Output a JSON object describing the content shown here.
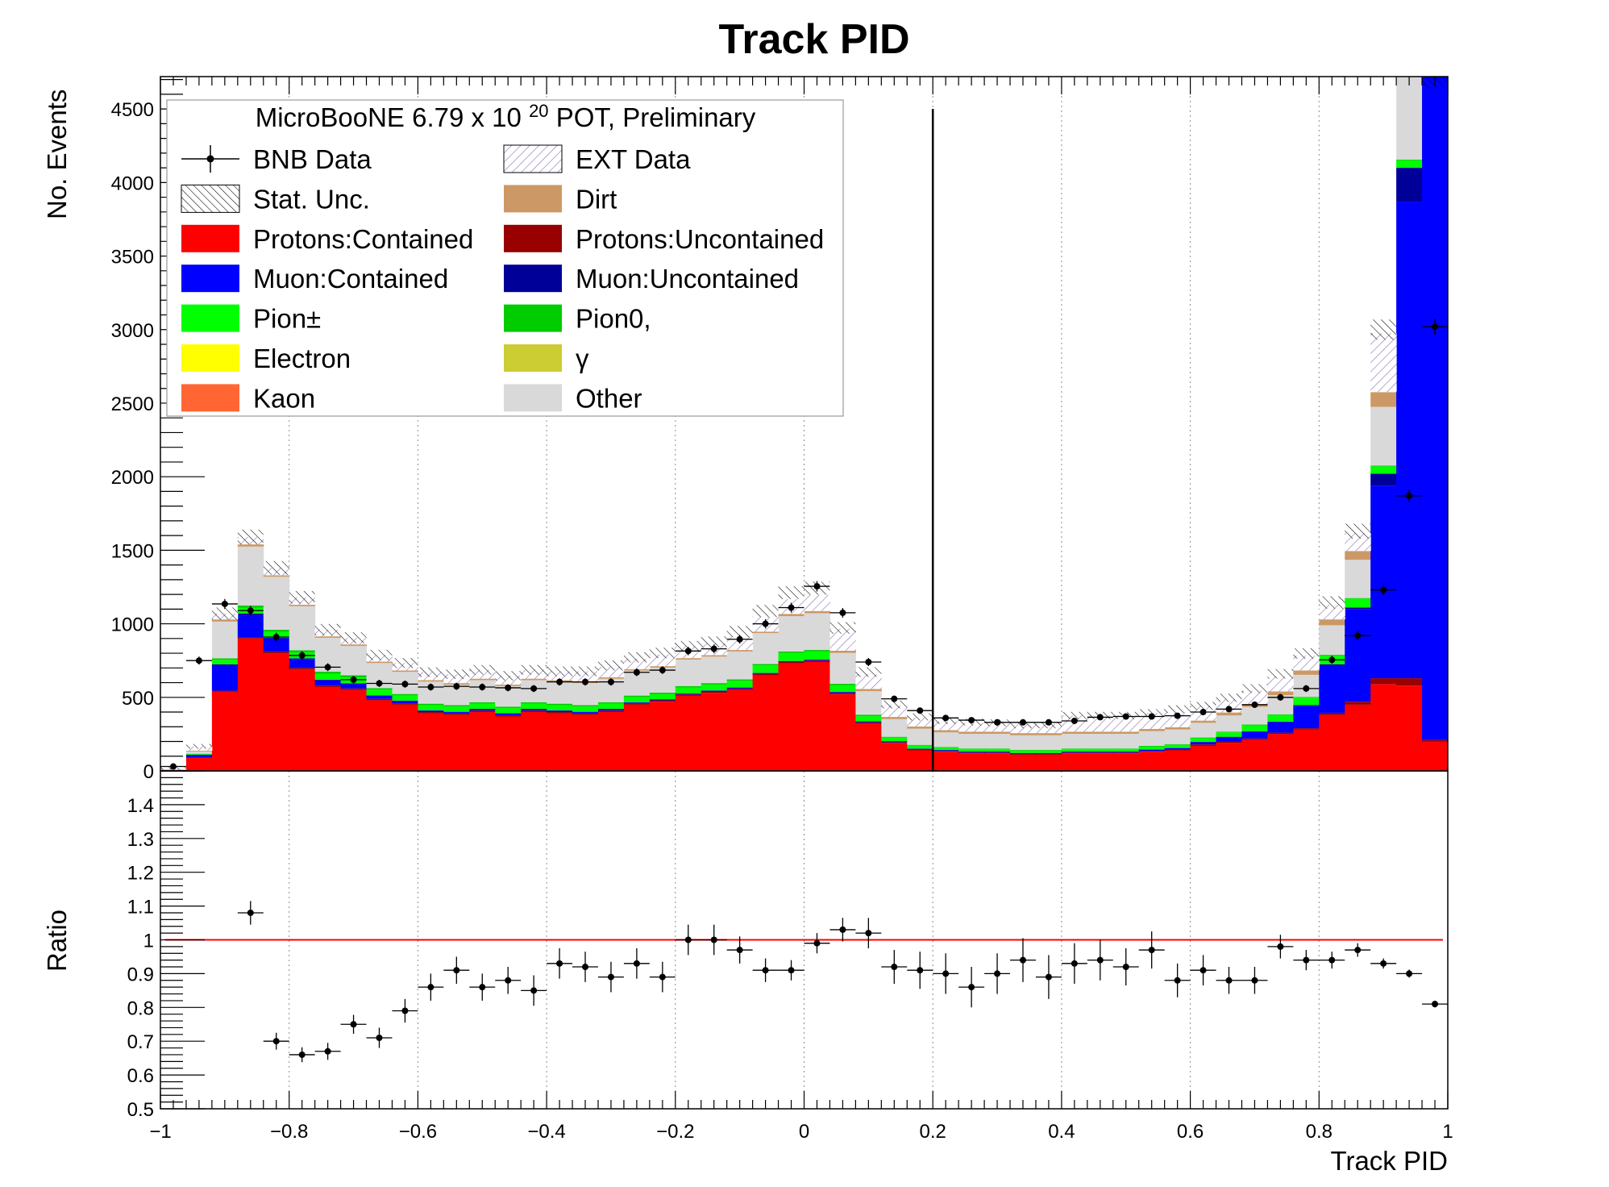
{
  "chart_data": {
    "type": "bar",
    "title": "Track PID",
    "xlabel": "Track PID",
    "ylabel": "No. Events",
    "ratio_ylabel": "Ratio",
    "xlim": [
      -1,
      1
    ],
    "ylim": [
      0,
      4720
    ],
    "ratio_ylim": [
      0.5,
      1.5
    ],
    "x_ticks": [
      "−1",
      "−0.8",
      "−0.6",
      "−0.4",
      "−0.2",
      "0",
      "0.2",
      "0.4",
      "0.6",
      "0.8",
      "1"
    ],
    "y_ticks": [
      "500",
      "1000",
      "1500",
      "2000",
      "2500",
      "3000",
      "3500",
      "4000",
      "4500"
    ],
    "y_zero_tick": "0",
    "ratio_ticks": [
      "0.5",
      "0.6",
      "0.7",
      "0.8",
      "0.9",
      "1",
      "1.1",
      "1.2",
      "1.3",
      "1.4"
    ],
    "grid": "vertical dotted",
    "legend_placement": "top-left",
    "legend_header": "MicroBooNE 6.79 x 10 20 POT, Preliminary",
    "cut_line_x": 0.2,
    "ratio_reference": 1.0,
    "bin_width": 0.04,
    "bin_edges_start": -1.0,
    "legend": [
      {
        "label": "BNB Data",
        "kind": "data"
      },
      {
        "label": "EXT Data",
        "kind": "hatch-ext"
      },
      {
        "label": "Stat. Unc.",
        "kind": "hatch-unc"
      },
      {
        "label": "Dirt",
        "color": "#cc9966"
      },
      {
        "label": "Protons:Contained",
        "color": "#ff0000"
      },
      {
        "label": "Protons:Uncontained",
        "color": "#990000"
      },
      {
        "label": "Muon:Contained",
        "color": "#0000ff"
      },
      {
        "label": "Muon:Uncontained",
        "color": "#000099"
      },
      {
        "label": "Pion±",
        "color": "#00ff00"
      },
      {
        "label": "Pion0,",
        "color": "#00cc00"
      },
      {
        "label": "Electron",
        "color": "#ffff00"
      },
      {
        "label": "γ",
        "color": "#cccc33"
      },
      {
        "label": "Kaon",
        "color": "#ff6633"
      },
      {
        "label": "Other",
        "color": "#d9d9d9"
      }
    ],
    "stack_order": [
      "Protons:Contained",
      "Protons:Uncontained",
      "Muon:Contained",
      "Muon:Uncontained",
      "Pion±",
      "Pion0,",
      "Other",
      "Dirt",
      "EXT Data"
    ],
    "stack_colors": [
      "#ff0000",
      "#990000",
      "#0000ff",
      "#000099",
      "#00ff00",
      "#00cc00",
      "#d9d9d9",
      "#cc9966",
      "ext"
    ],
    "series": [
      {
        "name": "Protons:Contained",
        "values": [
          5,
          90,
          540,
          900,
          800,
          690,
          570,
          550,
          480,
          450,
          390,
          380,
          400,
          370,
          400,
          390,
          380,
          400,
          450,
          470,
          510,
          530,
          550,
          650,
          730,
          740,
          520,
          320,
          190,
          140,
          130,
          120,
          120,
          110,
          110,
          120,
          120,
          120,
          130,
          140,
          170,
          190,
          210,
          250,
          280,
          380,
          450,
          590,
          580,
          200
        ]
      },
      {
        "name": "Protons:Uncontained",
        "values": [
          0,
          0,
          5,
          10,
          10,
          10,
          10,
          10,
          10,
          10,
          10,
          10,
          10,
          10,
          10,
          10,
          10,
          10,
          10,
          10,
          10,
          10,
          10,
          10,
          10,
          10,
          10,
          10,
          5,
          5,
          5,
          5,
          5,
          5,
          5,
          5,
          5,
          5,
          5,
          5,
          10,
          10,
          10,
          10,
          10,
          15,
          20,
          40,
          50,
          10
        ]
      },
      {
        "name": "Muon:Contained",
        "values": [
          2,
          20,
          170,
          150,
          90,
          60,
          35,
          30,
          20,
          15,
          10,
          10,
          10,
          10,
          10,
          10,
          10,
          10,
          5,
          5,
          5,
          5,
          5,
          5,
          5,
          5,
          5,
          5,
          5,
          5,
          5,
          5,
          5,
          5,
          5,
          5,
          5,
          5,
          8,
          10,
          15,
          30,
          45,
          70,
          150,
          320,
          630,
          1310,
          3240,
          4520
        ]
      },
      {
        "name": "Muon:Uncontained",
        "values": [
          0,
          0,
          10,
          10,
          5,
          5,
          5,
          5,
          3,
          3,
          2,
          2,
          2,
          2,
          2,
          2,
          2,
          2,
          2,
          2,
          2,
          2,
          2,
          2,
          2,
          2,
          2,
          2,
          2,
          2,
          2,
          2,
          2,
          2,
          2,
          2,
          2,
          2,
          2,
          2,
          2,
          2,
          5,
          5,
          8,
          10,
          10,
          80,
          230,
          0
        ]
      },
      {
        "name": "Pion±",
        "values": [
          0,
          5,
          30,
          40,
          40,
          40,
          40,
          40,
          40,
          35,
          35,
          35,
          35,
          35,
          35,
          35,
          35,
          35,
          35,
          35,
          40,
          40,
          45,
          50,
          55,
          55,
          45,
          35,
          25,
          20,
          15,
          15,
          15,
          15,
          15,
          15,
          15,
          15,
          20,
          20,
          25,
          30,
          40,
          45,
          50,
          60,
          60,
          50,
          50,
          0
        ]
      },
      {
        "name": "Pion0,",
        "values": [
          0,
          2,
          10,
          15,
          15,
          15,
          15,
          15,
          10,
          10,
          10,
          10,
          10,
          10,
          10,
          10,
          10,
          10,
          10,
          10,
          10,
          10,
          10,
          10,
          10,
          10,
          10,
          10,
          5,
          5,
          5,
          5,
          5,
          5,
          5,
          5,
          5,
          5,
          5,
          5,
          5,
          5,
          5,
          5,
          5,
          5,
          5,
          5,
          5,
          0
        ]
      },
      {
        "name": "Other",
        "values": [
          2,
          15,
          250,
          400,
          360,
          300,
          230,
          200,
          170,
          150,
          150,
          140,
          150,
          140,
          150,
          150,
          150,
          160,
          170,
          170,
          180,
          180,
          190,
          210,
          240,
          250,
          210,
          160,
          120,
          110,
          100,
          100,
          100,
          100,
          100,
          100,
          100,
          100,
          100,
          100,
          100,
          110,
          120,
          130,
          150,
          200,
          260,
          400,
          600,
          0
        ]
      },
      {
        "name": "Dirt",
        "values": [
          1,
          5,
          15,
          15,
          10,
          10,
          10,
          10,
          10,
          10,
          10,
          10,
          10,
          10,
          10,
          10,
          10,
          10,
          10,
          10,
          10,
          10,
          10,
          10,
          15,
          15,
          15,
          15,
          15,
          15,
          15,
          15,
          15,
          15,
          15,
          15,
          15,
          15,
          15,
          15,
          15,
          20,
          20,
          25,
          30,
          40,
          60,
          100,
          160,
          0
        ]
      },
      {
        "name": "EXT Data",
        "values": [
          5,
          30,
          40,
          50,
          50,
          50,
          45,
          45,
          45,
          50,
          55,
          60,
          60,
          60,
          60,
          60,
          70,
          70,
          70,
          80,
          80,
          80,
          90,
          100,
          100,
          110,
          150,
          100,
          80,
          60,
          60,
          60,
          60,
          60,
          60,
          110,
          110,
          110,
          110,
          100,
          100,
          90,
          90,
          100,
          100,
          100,
          120,
          400,
          680,
          0
        ]
      }
    ],
    "stack_totals": [
      17,
      167,
      1070,
      1590,
      1380,
      1180,
      960,
      905,
      788,
      733,
      672,
      657,
      687,
      647,
      687,
      677,
      677,
      717,
      772,
      802,
      847,
      877,
      947,
      1087,
      1212,
      1242,
      972,
      672,
      452,
      367,
      342,
      332,
      327,
      312,
      312,
      377,
      377,
      377,
      395,
      420,
      442,
      497,
      560,
      660,
      798,
      1145,
      1630,
      3000,
      5600,
      4730
    ],
    "data_points": [
      30,
      750,
      1135,
      1090,
      910,
      785,
      705,
      620,
      595,
      590,
      570,
      575,
      570,
      565,
      560,
      605,
      605,
      605,
      670,
      685,
      815,
      830,
      895,
      1000,
      1110,
      1255,
      1075,
      740,
      490,
      410,
      360,
      345,
      330,
      330,
      330,
      340,
      365,
      370,
      370,
      375,
      400,
      420,
      450,
      500,
      560,
      755,
      920,
      1230,
      1870,
      3020
    ],
    "ratio_points": [
      null,
      null,
      null,
      1.08,
      0.7,
      0.66,
      0.67,
      0.75,
      0.71,
      0.79,
      0.86,
      0.91,
      0.86,
      0.88,
      0.85,
      0.93,
      0.92,
      0.89,
      0.93,
      0.89,
      1.0,
      1.0,
      0.97,
      0.91,
      0.91,
      0.99,
      1.03,
      1.02,
      0.92,
      0.91,
      0.9,
      0.86,
      0.9,
      0.94,
      0.89,
      0.93,
      0.94,
      0.92,
      0.97,
      0.88,
      0.91,
      0.88,
      0.88,
      0.98,
      0.94,
      0.94,
      0.97,
      0.93,
      0.9,
      0.81
    ],
    "ratio_errors": [
      0,
      0,
      0,
      0.035,
      0.025,
      0.022,
      0.025,
      0.028,
      0.03,
      0.035,
      0.04,
      0.04,
      0.04,
      0.04,
      0.045,
      0.045,
      0.045,
      0.045,
      0.045,
      0.045,
      0.045,
      0.045,
      0.04,
      0.035,
      0.03,
      0.03,
      0.035,
      0.045,
      0.05,
      0.055,
      0.06,
      0.06,
      0.06,
      0.065,
      0.065,
      0.06,
      0.06,
      0.055,
      0.055,
      0.05,
      0.045,
      0.04,
      0.04,
      0.035,
      0.03,
      0.025,
      0.02,
      0.015,
      0.012,
      0.01
    ]
  }
}
